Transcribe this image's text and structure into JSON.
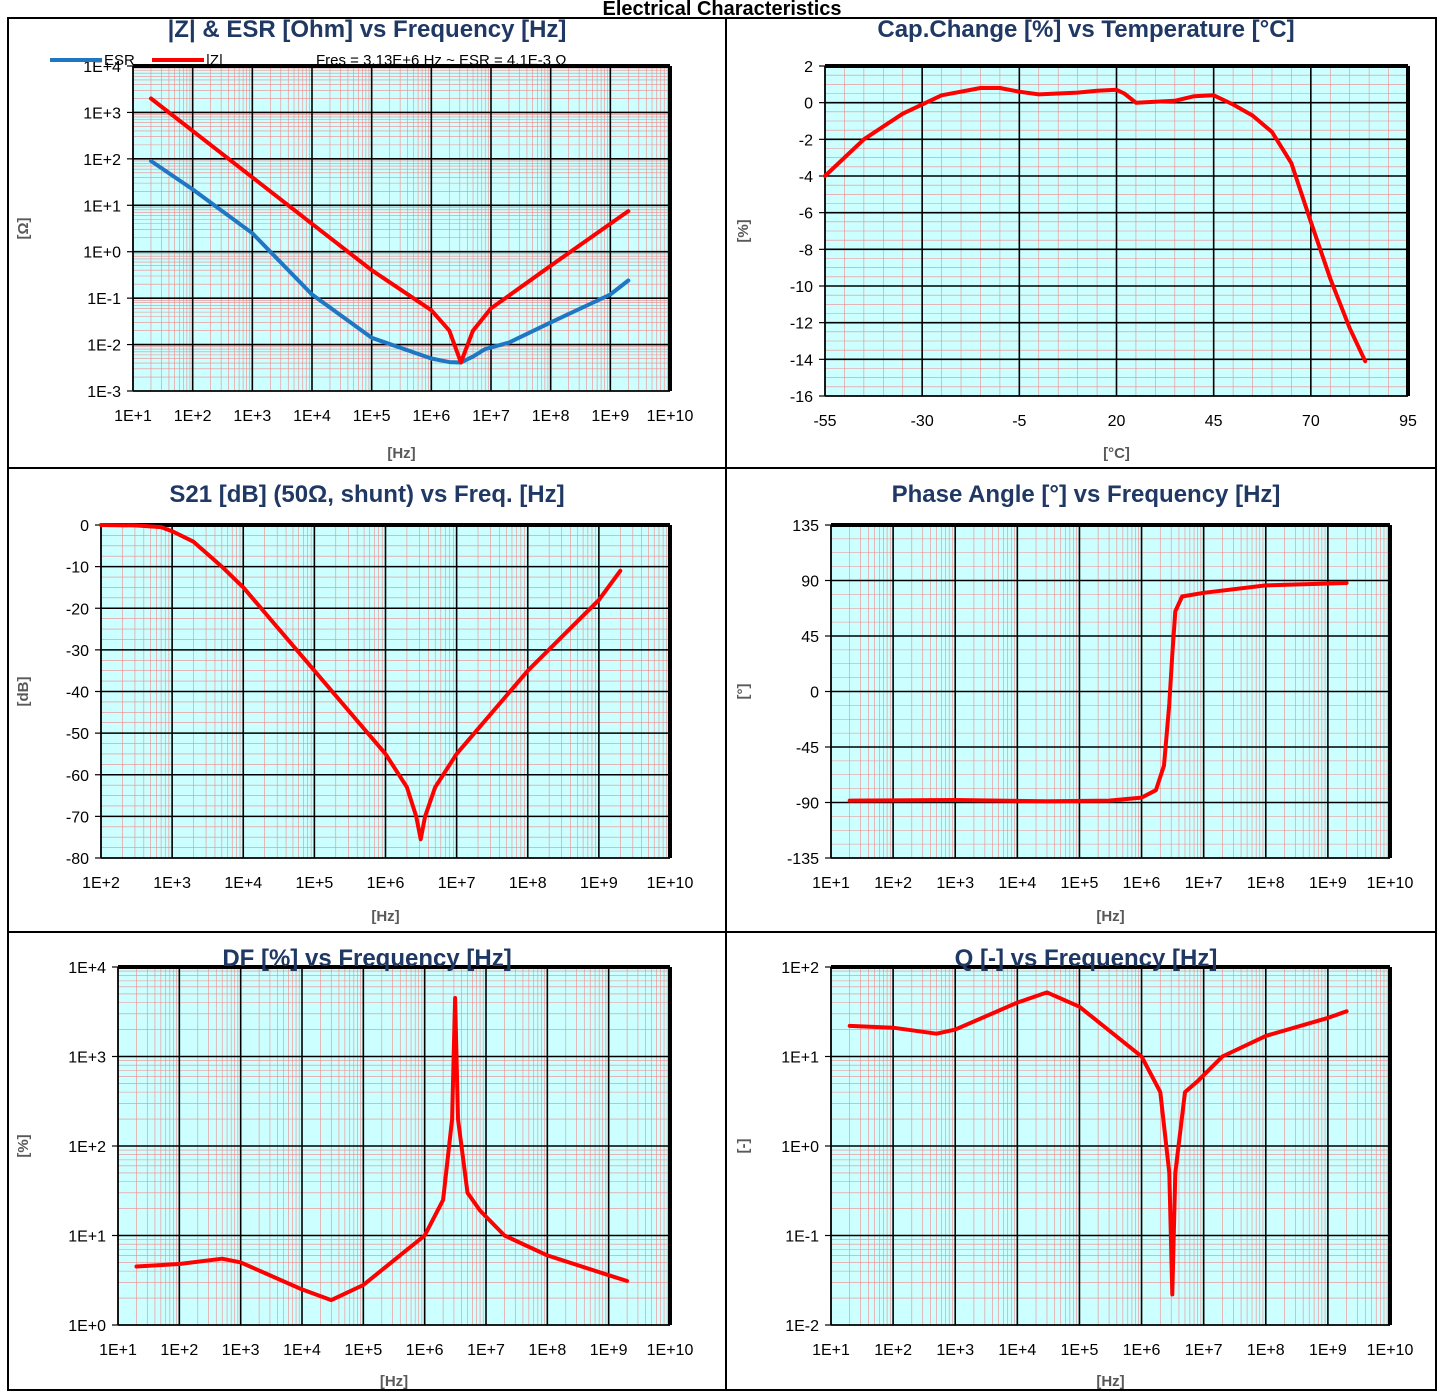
{
  "page_title": "Electrical Characteristics",
  "colors": {
    "series_red": "#ff0000",
    "series_blue": "#1f77c4",
    "plot_bg": "#ccffff",
    "title": "#1f3864",
    "minor_grid": "#f08a8a"
  },
  "chart_data": [
    {
      "id": "z-esr",
      "type": "line",
      "title": "|Z| & ESR [Ohm] vs Frequency [Hz]",
      "xlabel": "[Hz]",
      "ylabel": "[Ω]",
      "xscale": "log",
      "yscale": "log",
      "xlim": [
        10,
        10000000000
      ],
      "ylim": [
        0.001,
        10000
      ],
      "xticks": [
        "1E+1",
        "1E+2",
        "1E+3",
        "1E+4",
        "1E+5",
        "1E+6",
        "1E+7",
        "1E+8",
        "1E+9",
        "1E+10"
      ],
      "yticks": [
        "1E-3",
        "1E-2",
        "1E-1",
        "1E+0",
        "1E+1",
        "1E+2",
        "1E+3",
        "1E+4"
      ],
      "legend": "top-left",
      "annotation": "Fres = 3.13E+6 Hz ~ ESR = 4.1E-3 Ω",
      "series": [
        {
          "name": "ESR",
          "color": "#1f77c4",
          "x": [
            20,
            100,
            1000,
            10000,
            100000,
            1000000,
            2000000,
            3130000,
            5000000,
            8000000,
            20000000,
            100000000,
            1000000000,
            2000000000
          ],
          "y": [
            90,
            22,
            2.5,
            0.12,
            0.014,
            0.005,
            0.0042,
            0.0041,
            0.0055,
            0.008,
            0.011,
            0.03,
            0.12,
            0.24
          ]
        },
        {
          "name": "|Z|",
          "color": "#ff0000",
          "x": [
            20,
            100,
            1000,
            10000,
            100000,
            1000000,
            2000000,
            3130000,
            5000000,
            10000000,
            100000000,
            1000000000,
            2000000000
          ],
          "y": [
            2000,
            400,
            40,
            4,
            0.4,
            0.055,
            0.02,
            0.0041,
            0.02,
            0.06,
            0.5,
            4,
            7.5
          ]
        }
      ]
    },
    {
      "id": "cap-temp",
      "type": "line",
      "title": "Cap.Change [%] vs Temperature [°C]",
      "xlabel": "[°C]",
      "ylabel": "[%]",
      "xscale": "linear",
      "yscale": "linear",
      "xlim": [
        -55,
        95
      ],
      "ylim": [
        -16,
        2
      ],
      "xticks": [
        "-55",
        "-30",
        "-5",
        "20",
        "45",
        "70",
        "95"
      ],
      "yticks": [
        "2",
        "0",
        "-2",
        "-4",
        "-6",
        "-8",
        "-10",
        "-12",
        "-14",
        "-16"
      ],
      "series": [
        {
          "name": "",
          "color": "#ff0000",
          "x": [
            -55,
            -45,
            -35,
            -25,
            -15,
            -10,
            -5,
            0,
            5,
            10,
            15,
            20,
            22,
            25,
            30,
            35,
            40,
            45,
            50,
            55,
            60,
            65,
            70,
            75,
            80,
            84
          ],
          "y": [
            -4,
            -2,
            -0.6,
            0.4,
            0.8,
            0.8,
            0.6,
            0.45,
            0.5,
            0.55,
            0.65,
            0.7,
            0.5,
            0.0,
            0.05,
            0.1,
            0.35,
            0.4,
            -0.1,
            -0.7,
            -1.6,
            -3.3,
            -6.5,
            -9.6,
            -12.3,
            -14.1
          ]
        }
      ]
    },
    {
      "id": "s21",
      "type": "line",
      "title": "S21 [dB] (50Ω, shunt) vs Freq. [Hz]",
      "xlabel": "[Hz]",
      "ylabel": "[dB]",
      "xscale": "log",
      "yscale": "linear",
      "xlim": [
        100,
        10000000000
      ],
      "ylim": [
        -80,
        0
      ],
      "xticks": [
        "1E+2",
        "1E+3",
        "1E+4",
        "1E+5",
        "1E+6",
        "1E+7",
        "1E+8",
        "1E+9",
        "1E+10"
      ],
      "yticks": [
        "0",
        "-10",
        "-20",
        "-30",
        "-40",
        "-50",
        "-60",
        "-70",
        "-80"
      ],
      "series": [
        {
          "name": "",
          "color": "#ff0000",
          "x": [
            100,
            300,
            700,
            1000,
            2000,
            5000,
            10000,
            100000,
            1000000,
            2000000,
            2700000,
            3130000,
            3600000,
            5000000,
            10000000,
            100000000,
            1000000000,
            2000000000
          ],
          "y": [
            0,
            -0.1,
            -0.5,
            -1.5,
            -4,
            -10,
            -15,
            -35,
            -55,
            -63,
            -70,
            -75.5,
            -70,
            -63,
            -55,
            -35,
            -18,
            -11
          ]
        }
      ]
    },
    {
      "id": "phase",
      "type": "line",
      "title": "Phase Angle [°] vs Frequency [Hz]",
      "xlabel": "[Hz]",
      "ylabel": "[°]",
      "xscale": "log",
      "yscale": "linear",
      "xlim": [
        10,
        10000000000
      ],
      "ylim": [
        -135,
        135
      ],
      "xticks": [
        "1E+1",
        "1E+2",
        "1E+3",
        "1E+4",
        "1E+5",
        "1E+6",
        "1E+7",
        "1E+8",
        "1E+9",
        "1E+10"
      ],
      "yticks": [
        "135",
        "90",
        "45",
        "0",
        "-45",
        "-90",
        "-135"
      ],
      "series": [
        {
          "name": "",
          "color": "#ff0000",
          "x": [
            20,
            1000,
            30000,
            300000,
            1000000,
            1700000,
            2300000,
            2800000,
            3130000,
            3500000,
            4500000,
            10000000,
            100000000,
            2000000000
          ],
          "y": [
            -88.5,
            -88,
            -89,
            -88.5,
            -86,
            -80,
            -60,
            -10,
            30,
            65,
            77,
            80,
            86,
            88
          ]
        }
      ]
    },
    {
      "id": "df",
      "type": "line",
      "title": "DF [%] vs Frequency [Hz]",
      "xlabel": "[Hz]",
      "ylabel": "[%]",
      "xscale": "log",
      "yscale": "log",
      "xlim": [
        10,
        10000000000
      ],
      "ylim": [
        1,
        10000
      ],
      "xticks": [
        "1E+1",
        "1E+2",
        "1E+3",
        "1E+4",
        "1E+5",
        "1E+6",
        "1E+7",
        "1E+8",
        "1E+9",
        "1E+10"
      ],
      "yticks": [
        "1E+0",
        "1E+1",
        "1E+2",
        "1E+3",
        "1E+4"
      ],
      "series": [
        {
          "name": "",
          "color": "#ff0000",
          "x": [
            20,
            100,
            500,
            1000,
            10000,
            30000,
            100000,
            1000000,
            2000000,
            2800000,
            3130000,
            3500000,
            5000000,
            8000000,
            20000000,
            100000000,
            1000000000,
            2000000000
          ],
          "y": [
            4.5,
            4.8,
            5.5,
            5,
            2.5,
            1.9,
            2.8,
            10,
            25,
            200,
            4500,
            200,
            30,
            19,
            10,
            6,
            3.6,
            3.1
          ]
        }
      ]
    },
    {
      "id": "q",
      "type": "line",
      "title": "Q [-] vs Frequency [Hz]",
      "xlabel": "[Hz]",
      "ylabel": "[-]",
      "xscale": "log",
      "yscale": "log",
      "xlim": [
        10,
        10000000000
      ],
      "ylim": [
        0.01,
        100
      ],
      "xticks": [
        "1E+1",
        "1E+2",
        "1E+3",
        "1E+4",
        "1E+5",
        "1E+6",
        "1E+7",
        "1E+8",
        "1E+9",
        "1E+10"
      ],
      "yticks": [
        "1E-2",
        "1E-1",
        "1E+0",
        "1E+1",
        "1E+2"
      ],
      "series": [
        {
          "name": "",
          "color": "#ff0000",
          "x": [
            20,
            100,
            500,
            1000,
            10000,
            30000,
            100000,
            1000000,
            2000000,
            2800000,
            3130000,
            3500000,
            5000000,
            8000000,
            20000000,
            100000000,
            1000000000,
            2000000000
          ],
          "y": [
            22,
            21,
            18,
            20,
            40,
            52,
            36,
            10,
            4,
            0.5,
            0.022,
            0.5,
            4,
            5.3,
            10,
            17,
            27,
            32
          ]
        }
      ]
    }
  ]
}
